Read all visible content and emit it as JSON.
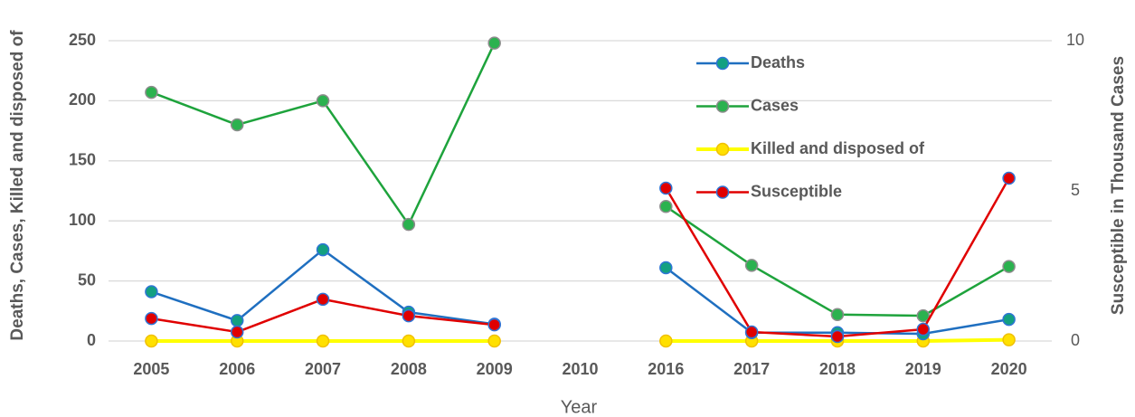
{
  "chart_data": {
    "type": "line",
    "x_label": "Year",
    "y_label": "Deaths, Cases, Killed and disposed of",
    "y2_label": "Susceptible in Thousand Cases",
    "categories": [
      "2005",
      "2006",
      "2007",
      "2008",
      "2009",
      "2010",
      "2016",
      "2017",
      "2018",
      "2019",
      "2020"
    ],
    "ylim": [
      0,
      250
    ],
    "yticks": [
      0,
      50,
      100,
      150,
      200,
      250
    ],
    "y2lim": [
      0,
      10
    ],
    "y2ticks": [
      0,
      5,
      10
    ],
    "grid": true,
    "legend": "upper right",
    "series": [
      {
        "name": "Deaths",
        "color": "#1f6fc0",
        "marker_fill": "#13a081",
        "marker_edge": "#2e75d6",
        "values": [
          41,
          17,
          76,
          24,
          14,
          null,
          61,
          7,
          7,
          6,
          18
        ]
      },
      {
        "name": "Cases",
        "color": "#1ea33c",
        "marker_fill": "#2bb24f",
        "marker_edge": "#8c8c8c",
        "values": [
          207,
          180,
          200,
          97,
          248,
          null,
          112,
          63,
          22,
          21,
          62
        ]
      },
      {
        "name": "Killed and disposed of",
        "color": "#ffff00",
        "marker_fill": "#ffe000",
        "marker_edge": "#f0c000",
        "values": [
          0,
          0,
          0,
          0,
          0,
          null,
          0,
          0,
          0,
          0,
          1
        ]
      },
      {
        "name": "Susceptible",
        "color": "#e00000",
        "marker_fill": "#e00000",
        "marker_edge": "#2e75d6",
        "axis": "y2",
        "values": [
          0.75,
          0.3,
          1.39,
          0.84,
          0.54,
          null,
          5.09,
          0.3,
          0.15,
          0.39,
          5.42
        ]
      }
    ]
  }
}
